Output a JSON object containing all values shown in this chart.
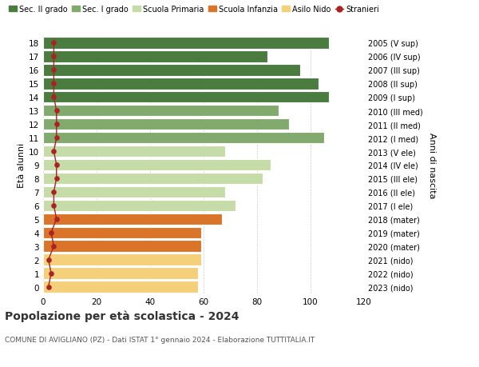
{
  "ages": [
    0,
    1,
    2,
    3,
    4,
    5,
    6,
    7,
    8,
    9,
    10,
    11,
    12,
    13,
    14,
    15,
    16,
    17,
    18
  ],
  "bar_values": [
    58,
    58,
    59,
    59,
    59,
    67,
    72,
    68,
    82,
    85,
    68,
    105,
    92,
    88,
    107,
    103,
    96,
    84,
    107
  ],
  "stranieri_values": [
    2,
    3,
    2,
    4,
    3,
    5,
    4,
    4,
    5,
    5,
    4,
    5,
    5,
    5,
    4,
    4,
    4,
    4,
    4
  ],
  "right_labels": [
    "2023 (nido)",
    "2022 (nido)",
    "2021 (nido)",
    "2020 (mater)",
    "2019 (mater)",
    "2018 (mater)",
    "2017 (I ele)",
    "2016 (II ele)",
    "2015 (III ele)",
    "2014 (IV ele)",
    "2013 (V ele)",
    "2012 (I med)",
    "2011 (II med)",
    "2010 (III med)",
    "2009 (I sup)",
    "2008 (II sup)",
    "2007 (III sup)",
    "2006 (IV sup)",
    "2005 (V sup)"
  ],
  "colors": {
    "sec_II": "#4a7c40",
    "sec_I": "#82a96e",
    "primaria": "#c5dba8",
    "infanzia": "#d97429",
    "nido": "#f5d07a",
    "stranieri": "#aa2222"
  },
  "bar_colors": [
    "#f5d07a",
    "#f5d07a",
    "#f5d07a",
    "#d97429",
    "#d97429",
    "#d97429",
    "#c5dba8",
    "#c5dba8",
    "#c5dba8",
    "#c5dba8",
    "#c5dba8",
    "#82a96e",
    "#82a96e",
    "#82a96e",
    "#4a7c40",
    "#4a7c40",
    "#4a7c40",
    "#4a7c40",
    "#4a7c40"
  ],
  "title": "Popolazione per età scolastica - 2024",
  "subtitle": "COMUNE DI AVIGLIANO (PZ) - Dati ISTAT 1° gennaio 2024 - Elaborazione TUTTITALIA.IT",
  "ylabel": "Età alunni",
  "right_ylabel": "Anni di nascita",
  "xlim": [
    0,
    120
  ],
  "xticks": [
    0,
    20,
    40,
    60,
    80,
    100,
    120
  ],
  "legend_labels": [
    "Sec. II grado",
    "Sec. I grado",
    "Scuola Primaria",
    "Scuola Infanzia",
    "Asilo Nido",
    "Stranieri"
  ]
}
